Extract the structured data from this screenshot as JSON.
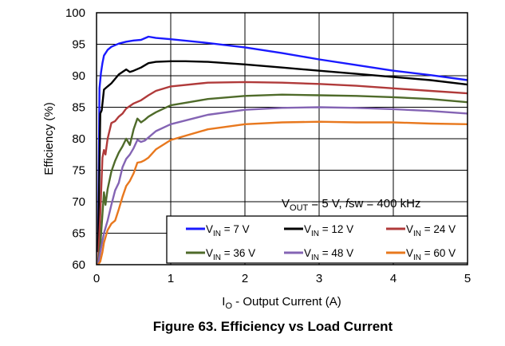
{
  "chart_data": {
    "type": "line",
    "caption": "Figure 63. Efficiency vs Load Current",
    "xlabel_prefix": "I",
    "xlabel_sub": "O",
    "xlabel_suffix": " - Output Current (A)",
    "ylabel": "Efficiency (%)",
    "xlim": [
      0,
      5
    ],
    "ylim": [
      60,
      100
    ],
    "xticks": [
      0,
      1,
      2,
      3,
      4,
      5
    ],
    "yticks": [
      60,
      65,
      70,
      75,
      80,
      85,
      90,
      95,
      100
    ],
    "grid": true,
    "legend_placement": "bottom-right",
    "annotation": {
      "v": "V",
      "sub": "OUT",
      "mid": " = 5 V, ",
      "f": "f",
      "rest": "sw = 400 kHz"
    },
    "series": [
      {
        "name": "VIN = 7 V",
        "label_main": "V",
        "label_sub": "IN",
        "label_rest": " = 7 V",
        "color": "#1a1aff",
        "x": [
          0.02,
          0.04,
          0.06,
          0.08,
          0.1,
          0.15,
          0.2,
          0.3,
          0.4,
          0.5,
          0.6,
          0.7,
          0.8,
          1.0,
          1.5,
          2.0,
          2.5,
          3.0,
          3.5,
          4.0,
          4.5,
          5.0
        ],
        "y": [
          62,
          88,
          90.5,
          92,
          93.2,
          94.1,
          94.6,
          95.1,
          95.4,
          95.6,
          95.7,
          96.2,
          96.0,
          95.8,
          95.2,
          94.5,
          93.6,
          92.6,
          91.7,
          90.8,
          90.1,
          89.3
        ]
      },
      {
        "name": "VIN = 12 V",
        "label_main": "V",
        "label_sub": "IN",
        "label_rest": " = 12 V",
        "color": "#000000",
        "x": [
          0.02,
          0.05,
          0.07,
          0.1,
          0.15,
          0.2,
          0.25,
          0.3,
          0.4,
          0.45,
          0.5,
          0.6,
          0.7,
          0.8,
          1.0,
          1.2,
          1.5,
          2.0,
          2.5,
          3.0,
          3.5,
          4.0,
          4.5,
          5.0
        ],
        "y": [
          62,
          84,
          84.5,
          87.8,
          88.3,
          88.8,
          89.5,
          90.2,
          91.0,
          90.6,
          90.8,
          91.3,
          92.0,
          92.2,
          92.3,
          92.3,
          92.2,
          91.8,
          91.3,
          90.8,
          90.3,
          89.8,
          89.3,
          88.6
        ]
      },
      {
        "name": "VIN = 24 V",
        "label_main": "V",
        "label_sub": "IN",
        "label_rest": " = 24 V",
        "color": "#b03a3a",
        "x": [
          0.02,
          0.05,
          0.08,
          0.1,
          0.12,
          0.15,
          0.2,
          0.25,
          0.3,
          0.35,
          0.4,
          0.5,
          0.6,
          0.7,
          0.8,
          1.0,
          1.5,
          2.0,
          2.5,
          3.0,
          3.5,
          4.0,
          4.5,
          5.0
        ],
        "y": [
          60,
          68,
          77,
          78.2,
          77.5,
          80,
          82.5,
          82.8,
          83.5,
          84,
          84.8,
          85.6,
          86.1,
          86.9,
          87.6,
          88.3,
          88.9,
          89.0,
          88.9,
          88.7,
          88.4,
          88.0,
          87.6,
          87.2
        ]
      },
      {
        "name": "VIN = 36 V",
        "label_main": "V",
        "label_sub": "IN",
        "label_rest": " = 36 V",
        "color": "#4f6b2a",
        "x": [
          0.02,
          0.05,
          0.1,
          0.12,
          0.15,
          0.2,
          0.25,
          0.3,
          0.35,
          0.4,
          0.45,
          0.5,
          0.55,
          0.6,
          0.65,
          0.7,
          0.8,
          1.0,
          1.5,
          2.0,
          2.5,
          3.0,
          3.5,
          4.0,
          4.5,
          5.0
        ],
        "y": [
          60,
          63,
          71.5,
          69.5,
          72,
          74.8,
          76.5,
          77.8,
          78.8,
          80,
          79,
          81.5,
          83.2,
          82.6,
          83.0,
          83.5,
          84.2,
          85.3,
          86.3,
          86.8,
          87.0,
          86.9,
          86.8,
          86.6,
          86.3,
          85.8
        ]
      },
      {
        "name": "VIN = 48 V",
        "label_main": "V",
        "label_sub": "IN",
        "label_rest": " = 48 V",
        "color": "#8464b4",
        "x": [
          0.02,
          0.05,
          0.1,
          0.15,
          0.2,
          0.25,
          0.3,
          0.35,
          0.4,
          0.45,
          0.5,
          0.55,
          0.6,
          0.65,
          0.7,
          0.8,
          1.0,
          1.5,
          2.0,
          2.5,
          3.0,
          3.5,
          4.0,
          4.5,
          5.0
        ],
        "y": [
          60,
          62,
          65,
          67,
          69.5,
          71.8,
          73,
          75.5,
          76.8,
          77.5,
          78.5,
          79.8,
          79.5,
          79.7,
          80.2,
          81.2,
          82.3,
          83.8,
          84.6,
          84.9,
          85.0,
          84.9,
          84.7,
          84.4,
          84.0
        ]
      },
      {
        "name": "VIN = 60 V",
        "label_main": "V",
        "label_sub": "IN",
        "label_rest": " = 60 V",
        "color": "#e8781e",
        "x": [
          0.02,
          0.05,
          0.08,
          0.1,
          0.15,
          0.2,
          0.25,
          0.3,
          0.35,
          0.4,
          0.45,
          0.5,
          0.55,
          0.6,
          0.65,
          0.7,
          0.8,
          1.0,
          1.5,
          2.0,
          2.5,
          3.0,
          3.5,
          4.0,
          4.5,
          5.0
        ],
        "y": [
          60,
          60.5,
          62,
          63.5,
          65.5,
          66.5,
          67,
          68.8,
          70.8,
          72.5,
          73.3,
          74.5,
          76.2,
          76.3,
          76.6,
          77.0,
          78.3,
          79.8,
          81.5,
          82.3,
          82.6,
          82.7,
          82.6,
          82.6,
          82.4,
          82.3
        ]
      }
    ]
  }
}
